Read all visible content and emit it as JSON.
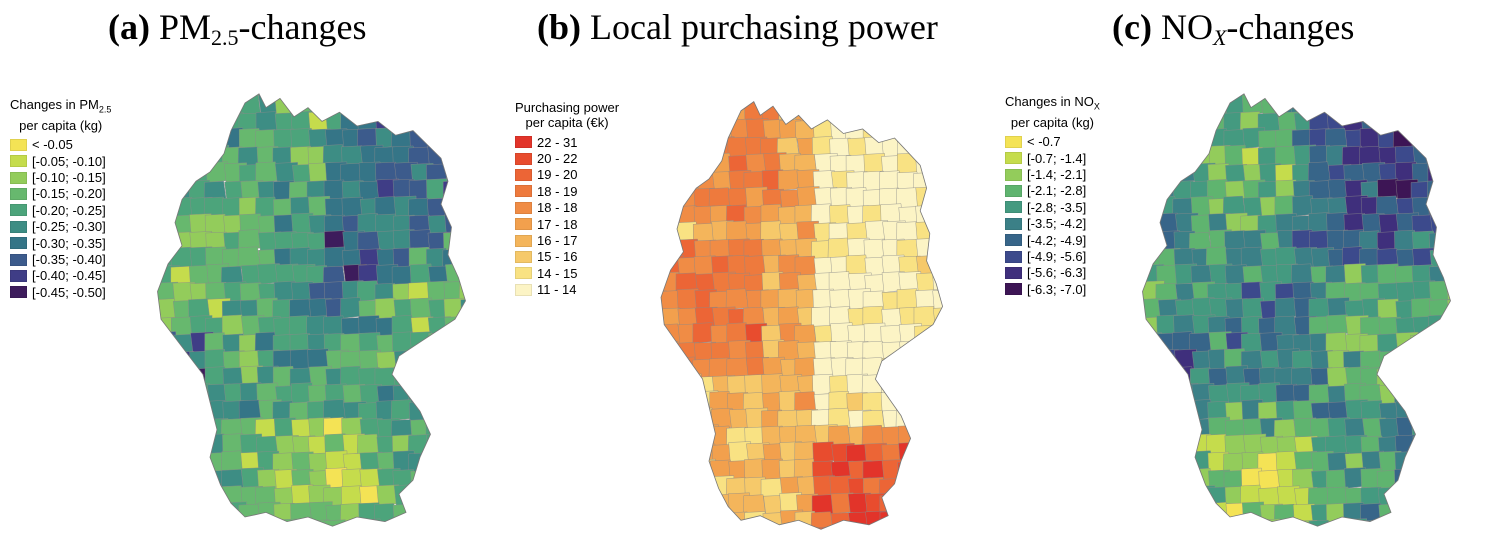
{
  "panels": [
    {
      "tag": "(a)",
      "title_main": "PM",
      "title_sub": "2.5",
      "title_rest": "-changes",
      "legend_title_line1_main": "Changes in PM",
      "legend_title_line1_sub": "2.5",
      "legend_title_line2": "per capita (kg)",
      "legend": [
        {
          "label": "< -0.05",
          "color": "#f4e355"
        },
        {
          "label": "[-0.05; -0.10]",
          "color": "#c5dc4c"
        },
        {
          "label": "[-0.10; -0.15]",
          "color": "#93cc5b"
        },
        {
          "label": "[-0.15; -0.20]",
          "color": "#67b86e"
        },
        {
          "label": "[-0.20; -0.25]",
          "color": "#4ca47b"
        },
        {
          "label": "[-0.25; -0.30]",
          "color": "#3d8d84"
        },
        {
          "label": "[-0.30; -0.35]",
          "color": "#357587"
        },
        {
          "label": "[-0.35; -0.40]",
          "color": "#3c5b8c"
        },
        {
          "label": "[-0.40; -0.45]",
          "color": "#3f3d86"
        },
        {
          "label": "[-0.45; -0.50]",
          "color": "#3d1c5c"
        }
      ]
    },
    {
      "tag": "(b)",
      "title_main": "Local purchasing power",
      "title_sub": "",
      "title_rest": "",
      "legend_title_line1_main": "Purchasing power",
      "legend_title_line1_sub": "",
      "legend_title_line2": "per capita (€k)",
      "legend": [
        {
          "label": "22 - 31",
          "color": "#e2342a"
        },
        {
          "label": "20 - 22",
          "color": "#e84c2e"
        },
        {
          "label": "19 - 20",
          "color": "#ec6536"
        },
        {
          "label": "18 - 19",
          "color": "#ee7a3d"
        },
        {
          "label": "18 - 18",
          "color": "#f08c45"
        },
        {
          "label": "17 - 18",
          "color": "#f2a04d"
        },
        {
          "label": "16 - 17",
          "color": "#f4b55b"
        },
        {
          "label": "15 - 16",
          "color": "#f6c96a"
        },
        {
          "label": "14 - 15",
          "color": "#f9e283"
        },
        {
          "label": "11 - 14",
          "color": "#fcf4c5"
        }
      ]
    },
    {
      "tag": "(c)",
      "title_main": "NO",
      "title_sub": "X",
      "title_rest": "-changes",
      "legend_title_line1_main": "Changes in NO",
      "legend_title_line1_sub": "X",
      "legend_title_line2": "per capita (kg)",
      "legend": [
        {
          "label": "< -0.7",
          "color": "#f4e355"
        },
        {
          "label": "[-0.7; -1.4]",
          "color": "#c5dc4c"
        },
        {
          "label": "[-1.4; -2.1]",
          "color": "#93cc5b"
        },
        {
          "label": "[-2.1; -2.8]",
          "color": "#5fb46f"
        },
        {
          "label": "[-2.8; -3.5]",
          "color": "#449a80"
        },
        {
          "label": "[-3.5; -4.2]",
          "color": "#3b8087"
        },
        {
          "label": "[-4.2; -4.9]",
          "color": "#376589"
        },
        {
          "label": "[-4.9; -5.6]",
          "color": "#3c4a8c"
        },
        {
          "label": "[-5.6; -6.3]",
          "color": "#3f2f7c"
        },
        {
          "label": "[-6.3; -7.0]",
          "color": "#3d1555"
        }
      ]
    }
  ]
}
